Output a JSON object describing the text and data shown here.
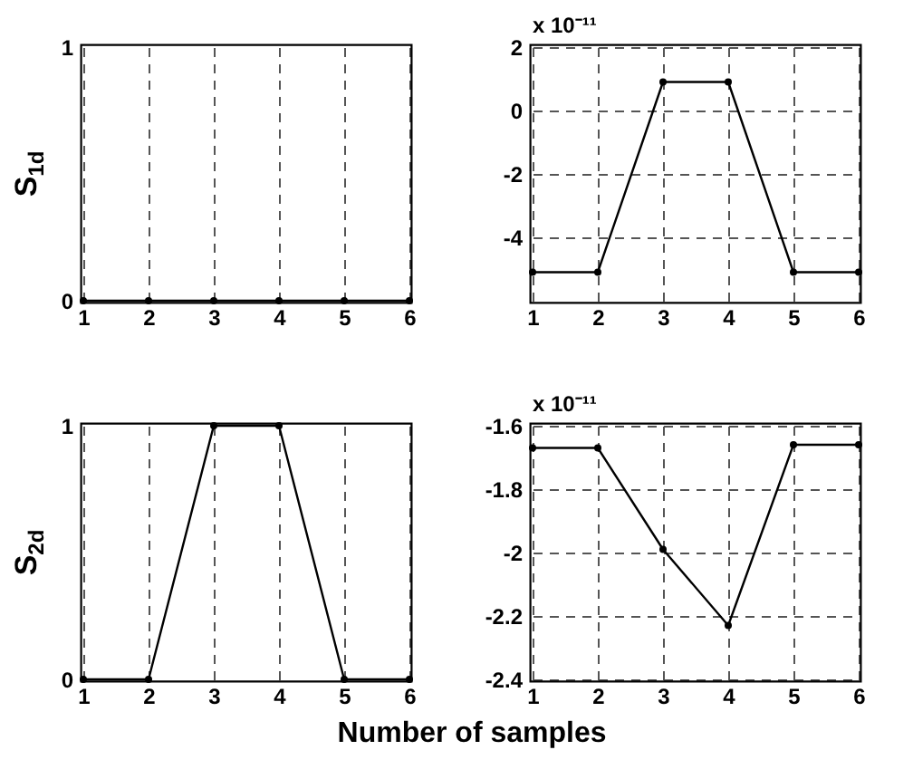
{
  "chart_data": [
    {
      "type": "line",
      "ylabel": "S$_{1d}$",
      "x": [
        1,
        2,
        3,
        4,
        5,
        6
      ],
      "series": [
        {
          "color": "#000000",
          "values": [
            0,
            0,
            0,
            0,
            0,
            0
          ]
        }
      ],
      "xlim": [
        1,
        6
      ],
      "xticks": [
        1,
        2,
        3,
        4,
        5,
        6
      ],
      "ylim": [
        0,
        1
      ],
      "yticks": [
        0,
        1
      ],
      "grid": "x",
      "marker": "circle",
      "line_style": "solid"
    },
    {
      "type": "line",
      "annotations": [
        "x 10⁻¹¹"
      ],
      "x": [
        1,
        2,
        3,
        4,
        5,
        6
      ],
      "series": [
        {
          "color": "#000000",
          "values": [
            -5.1,
            -5.1,
            0.9,
            0.9,
            -5.1,
            -5.1
          ]
        }
      ],
      "xlim": [
        1,
        6
      ],
      "xticks": [
        1,
        2,
        3,
        4,
        5,
        6
      ],
      "ylim": [
        -6,
        2
      ],
      "yticks": [
        -4,
        -2,
        0,
        2
      ],
      "grid": true,
      "marker": "circle",
      "line_style": "solid"
    },
    {
      "type": "line",
      "ylabel": "S$_{2d}$",
      "xlabel": "Number of samples",
      "x": [
        1,
        2,
        3,
        4,
        5,
        6
      ],
      "series": [
        {
          "color": "#000000",
          "values": [
            0,
            0,
            1,
            1,
            0,
            0
          ]
        }
      ],
      "xlim": [
        1,
        6
      ],
      "xticks": [
        1,
        2,
        3,
        4,
        5,
        6
      ],
      "ylim": [
        0,
        1
      ],
      "yticks": [
        0,
        1
      ],
      "grid": "x",
      "marker": "circle",
      "line_style": "solid"
    },
    {
      "type": "line",
      "annotations": [
        "x 10⁻¹¹"
      ],
      "x": [
        1,
        2,
        3,
        4,
        5,
        6
      ],
      "series": [
        {
          "color": "#000000",
          "values": [
            -1.67,
            -1.67,
            -1.99,
            -2.23,
            -1.66,
            -1.66
          ]
        }
      ],
      "xlim": [
        1,
        6
      ],
      "xticks": [
        1,
        2,
        3,
        4,
        5,
        6
      ],
      "ylim": [
        -2.4,
        -1.6
      ],
      "yticks": [
        -2.4,
        -2.2,
        -2,
        -1.8,
        -1.6
      ],
      "grid": true,
      "marker": "circle",
      "line_style": "solid"
    }
  ]
}
